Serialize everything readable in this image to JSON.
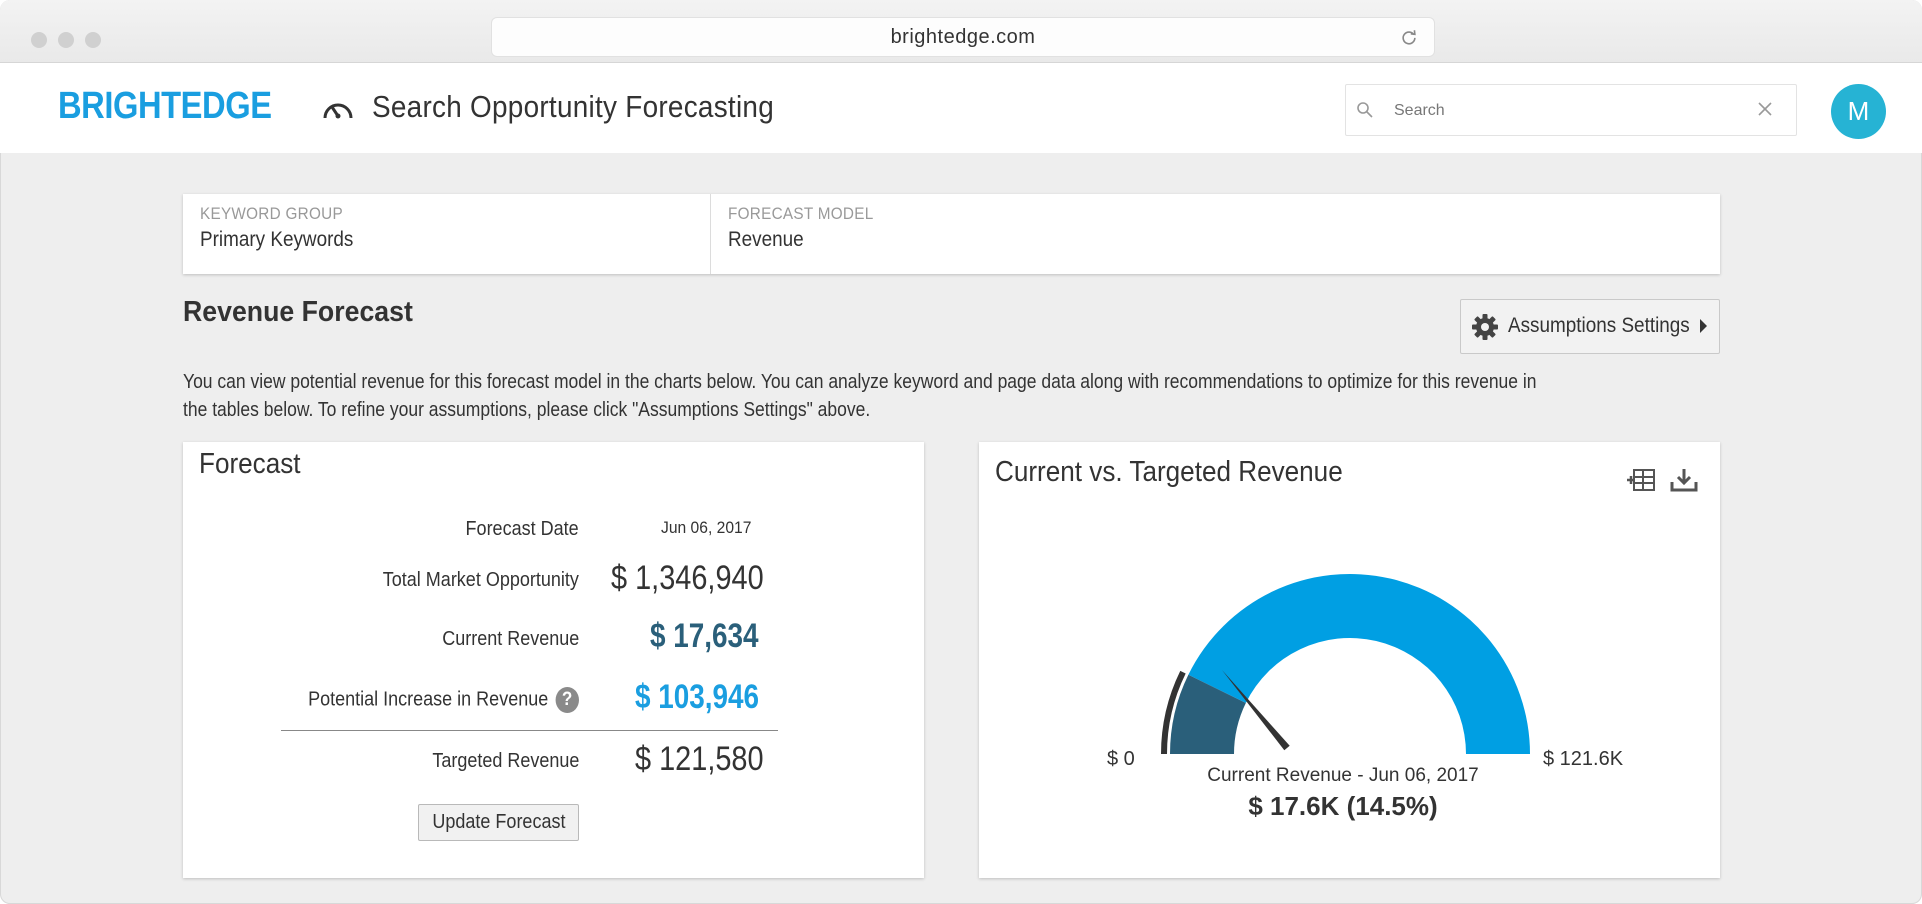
{
  "browser": {
    "url": "brightedge.com"
  },
  "header": {
    "brand": "BRIGHTEDGE",
    "app_title": "Search Opportunity Forecasting",
    "search_placeholder": "Search",
    "avatar_initial": "M",
    "brand_color": "#1a9ee0"
  },
  "selectors": {
    "keyword_group": {
      "label": "KEYWORD GROUP",
      "value": "Primary Keywords"
    },
    "forecast_model": {
      "label": "FORECAST MODEL",
      "value": "Revenue"
    }
  },
  "section": {
    "title": "Revenue Forecast",
    "assumptions_button": "Assumptions Settings",
    "description": "You can view potential revenue for this forecast model in the charts below. You can analyze keyword and page data along with recommendations to optimize for this revenue in the tables below. To refine your assumptions, please click \"Assumptions Settings\" above."
  },
  "forecast": {
    "title": "Forecast",
    "date_label": "Forecast Date",
    "date_value": "Jun 06, 2017",
    "market_label": "Total Market Opportunity",
    "market_value": "$ 1,346,940",
    "current_label": "Current Revenue",
    "current_value": "$ 17,634",
    "potential_label": "Potential Increase in Revenue",
    "potential_value": "$ 103,946",
    "help_glyph": "?",
    "targeted_label": "Targeted Revenue",
    "targeted_value": "$ 121,580",
    "update_button": "Update Forecast",
    "colors": {
      "current": "#2a5f7a",
      "potential": "#1a9ee0"
    }
  },
  "gauge_card": {
    "title": "Current vs. Targeted Revenue",
    "icons": [
      "table-add-icon",
      "download-icon"
    ]
  },
  "chart_data": {
    "type": "gauge",
    "title": "Current vs. Targeted Revenue",
    "min_label": "$ 0",
    "max_label": "$ 121.6K",
    "min": 0,
    "max": 121580,
    "current": 17634,
    "current_fraction": 0.145,
    "caption": "Current Revenue - Jun 06, 2017",
    "value_label": "$ 17.6K (14.5%)",
    "colors": {
      "current": "#2a5f7a",
      "remaining": "#009fe3",
      "needle": "#333333"
    }
  }
}
